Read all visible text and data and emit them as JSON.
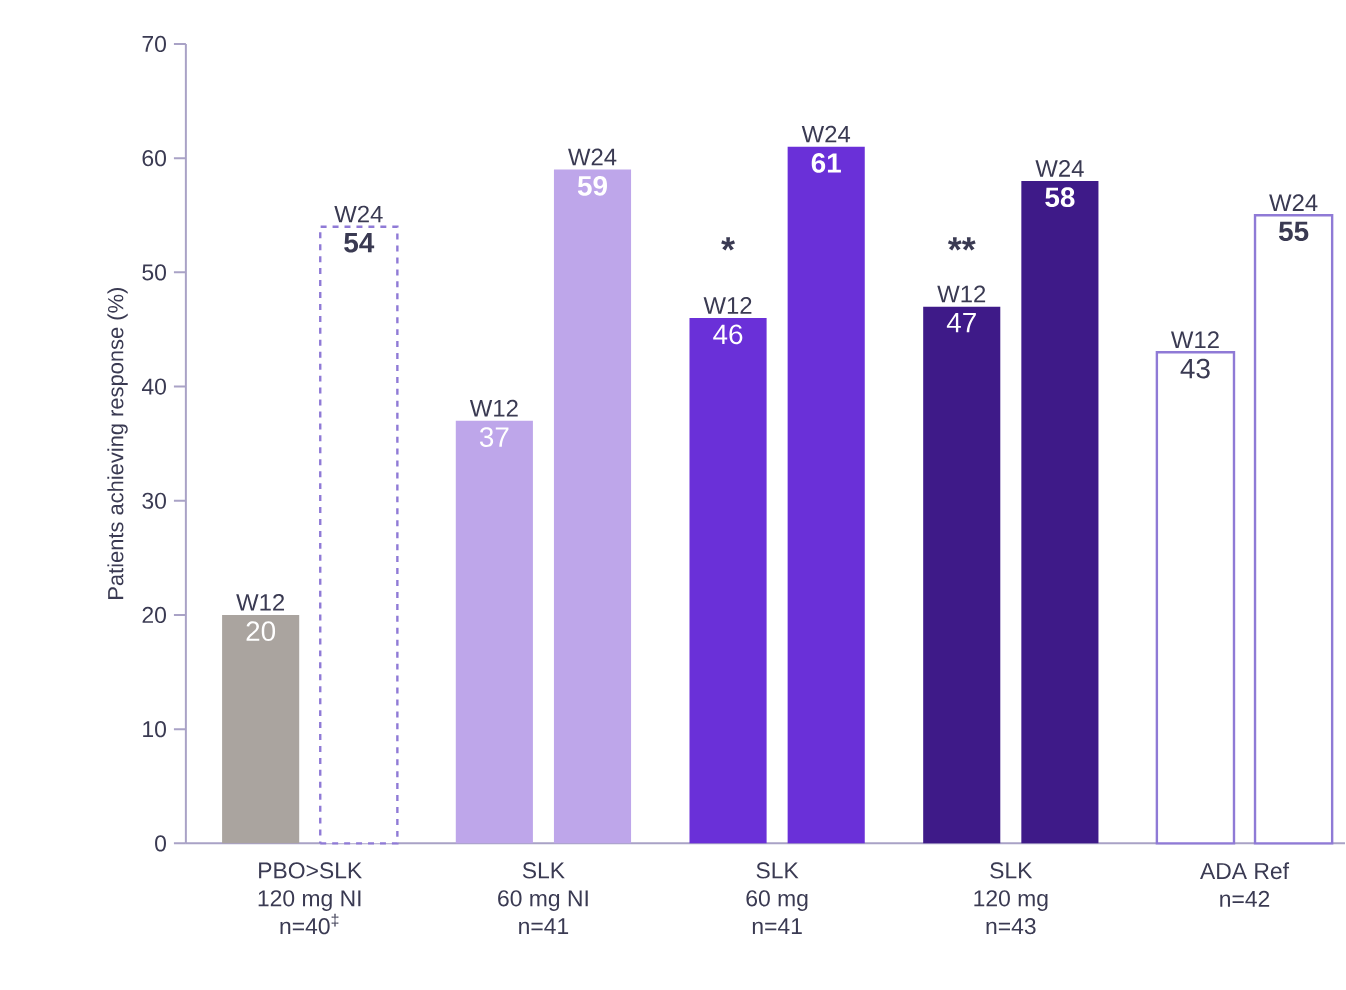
{
  "chart_data": {
    "type": "bar",
    "ylabel": "Patients achieving response (%)",
    "categories": [
      "PBO>SLK\n120 mg NI\nn=40$^{‡}$",
      "SLK\n60 mg NI\nn=41",
      "SLK\n60 mg\nn=41",
      "SLK\n120 mg\nn=43",
      "ADA Ref\nn=42"
    ],
    "series": [
      {
        "name": "W12",
        "colors": [
          "#aaa49f",
          "#bea6ea",
          "#6a30d8",
          "#3e1a88",
          "#ffffff"
        ],
        "values": [
          20,
          37,
          46,
          47,
          43
        ]
      },
      {
        "name": "W24",
        "colors": [
          "#ffffff",
          "#bea6ea",
          "#6a30d8",
          "#3e1a88",
          "#ffffff"
        ],
        "values": [
          54,
          59,
          61,
          58,
          55
        ]
      }
    ],
    "ylim": [
      0,
      70
    ],
    "yticks": [
      0,
      10,
      20,
      30,
      40,
      50,
      60,
      70
    ],
    "data_labels": true,
    "annotations": [
      "*",
      "**"
    ]
  }
}
